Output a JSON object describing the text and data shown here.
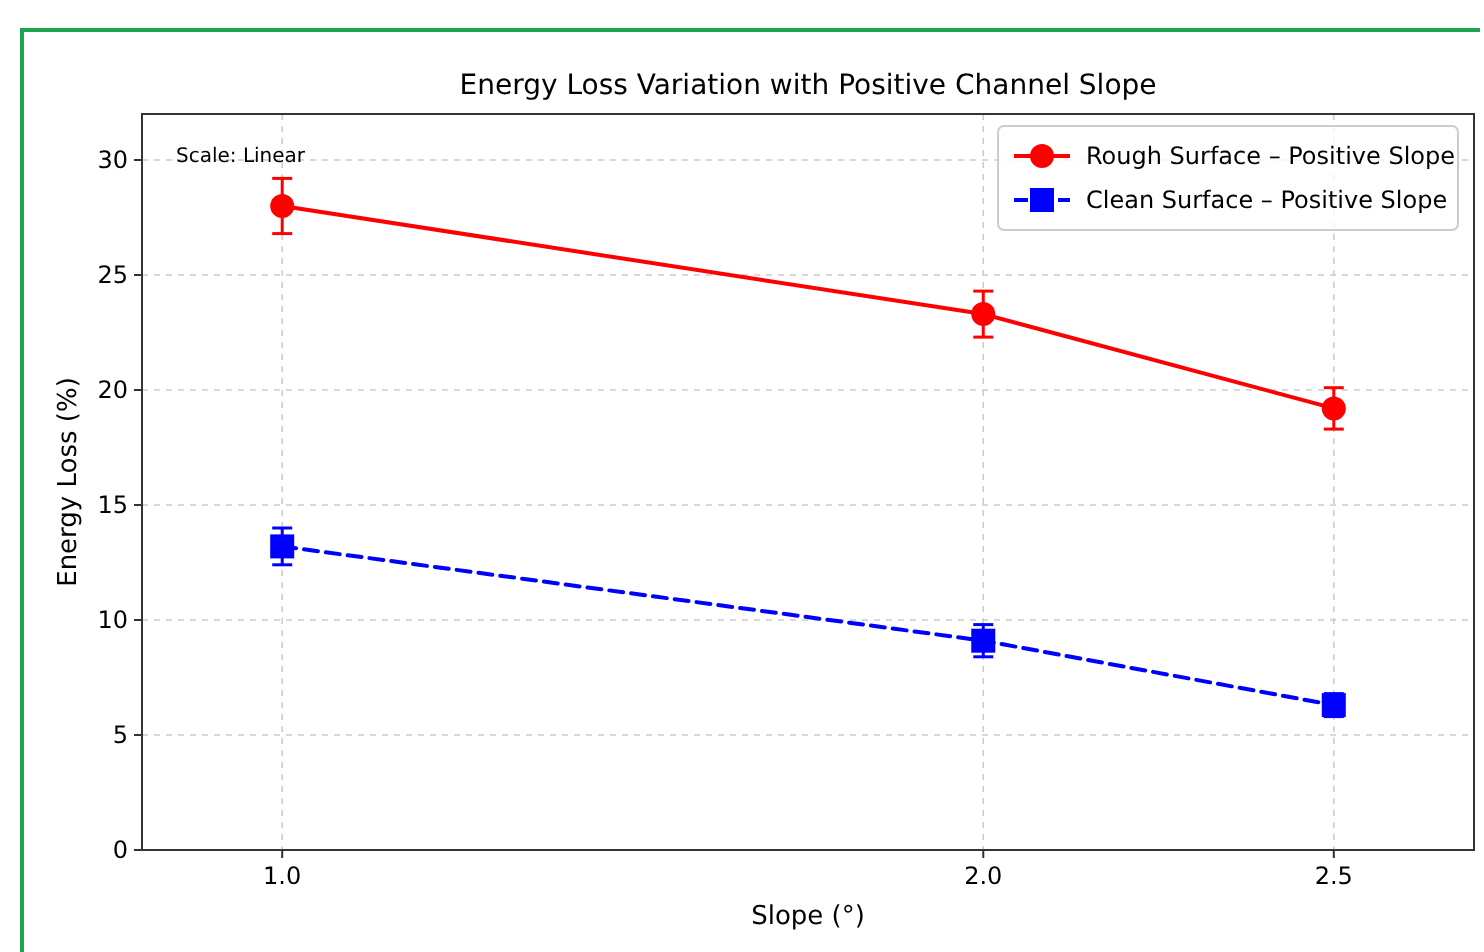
{
  "chart_data": {
    "type": "line",
    "title": "Energy Loss Variation with Positive Channel Slope",
    "xlabel": "Slope (°)",
    "ylabel": "Energy Loss (%)",
    "annotations": [
      "Scale: Linear"
    ],
    "x": [
      1.0,
      2.0,
      2.5
    ],
    "series": [
      {
        "name": "Rough Surface – Positive Slope",
        "color": "#ff0000",
        "values": [
          28.0,
          23.3,
          19.2
        ],
        "errors": [
          1.2,
          1.0,
          0.9
        ],
        "marker": "circle",
        "line_style": "solid"
      },
      {
        "name": "Clean Surface – Positive Slope",
        "color": "#0000ff",
        "values": [
          13.2,
          9.1,
          6.3
        ],
        "errors": [
          0.8,
          0.7,
          0.5
        ],
        "marker": "square",
        "line_style": "dashed"
      }
    ],
    "xlim": [
      0.8,
      2.7
    ],
    "xticks": [
      {
        "value": 1.0,
        "label": "1.0"
      },
      {
        "value": 2.0,
        "label": "2.0"
      },
      {
        "value": 2.5,
        "label": "2.5"
      }
    ],
    "ylim": [
      0,
      32
    ],
    "yticks": [
      0,
      5,
      10,
      15,
      20,
      25,
      30
    ],
    "grid": true,
    "legend": "top right"
  }
}
